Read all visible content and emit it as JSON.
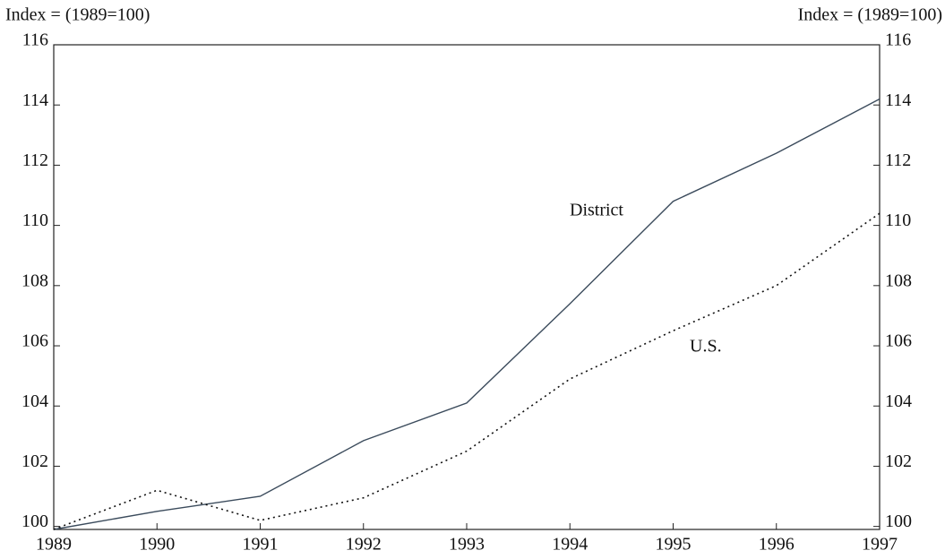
{
  "chart_data": {
    "type": "line",
    "ylabel": "Index = (1989=100)",
    "y2label": "Index = (1989=100)",
    "x": [
      1989,
      1990,
      1991,
      1992,
      1993,
      1994,
      1995,
      1996,
      1997
    ],
    "xlim": [
      1989,
      1997
    ],
    "xticks": [
      1989,
      1990,
      1991,
      1992,
      1993,
      1994,
      1995,
      1996,
      1997
    ],
    "ylim": [
      99.9,
      116
    ],
    "yticks": [
      100,
      102,
      104,
      106,
      108,
      110,
      112,
      114,
      116
    ],
    "y2lim": [
      99.9,
      116
    ],
    "y2ticks": [
      100,
      102,
      104,
      106,
      108,
      110,
      112,
      114,
      116
    ],
    "series": [
      {
        "name": "District",
        "color": "#3b4b5c",
        "dash": "solid",
        "values": [
          99.9,
          100.5,
          101.0,
          102.85,
          104.1,
          107.4,
          110.8,
          112.4,
          114.2
        ]
      },
      {
        "name": "U.S.",
        "color": "#111111",
        "dash": "dotted",
        "values": [
          99.9,
          101.2,
          100.2,
          100.95,
          102.5,
          104.9,
          106.5,
          108.0,
          110.4
        ]
      }
    ]
  }
}
